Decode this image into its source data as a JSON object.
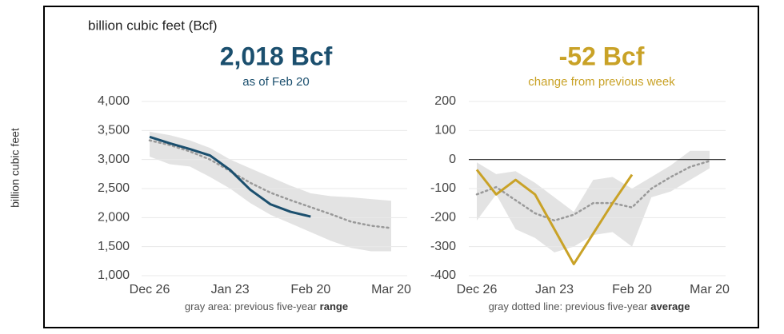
{
  "chart_data": [
    {
      "type": "line",
      "title": "2,018 Bcf",
      "subtitle": "as of Feb 20",
      "ylabel": "billion cubic feet",
      "unit_note": "billion cubic feet (Bcf)",
      "note": "gray area: previous five-year",
      "note_emphasis": "range",
      "categories": [
        "Dec 26",
        null,
        null,
        null,
        "Jan 23",
        null,
        null,
        null,
        "Feb 20",
        null,
        null,
        null,
        "Mar 20"
      ],
      "series": [
        {
          "color": "#1b4f6e",
          "values": [
            3390,
            3280,
            3180,
            3070,
            2820,
            2480,
            2230,
            2100,
            2018,
            null,
            null,
            null,
            null
          ]
        }
      ],
      "average": {
        "color": "#999999",
        "values": [
          3330,
          3250,
          3140,
          3000,
          2800,
          2600,
          2430,
          2300,
          2180,
          2060,
          1930,
          1860,
          1820
        ]
      },
      "band": {
        "color": "#e3e3e3",
        "high": [
          3480,
          3420,
          3330,
          3200,
          3000,
          2850,
          2700,
          2550,
          2420,
          2370,
          2350,
          2320,
          2290
        ],
        "low": [
          3050,
          2920,
          2880,
          2700,
          2500,
          2250,
          2050,
          1900,
          1750,
          1600,
          1480,
          1420,
          1420
        ]
      },
      "ylim": [
        1000,
        4000
      ],
      "yticks": [
        {
          "value": 1000,
          "label": "1,000"
        },
        {
          "value": 1500,
          "label": "1,500"
        },
        {
          "value": 2000,
          "label": "2,000"
        },
        {
          "value": 2500,
          "label": "2,500"
        },
        {
          "value": 3000,
          "label": "3,000"
        },
        {
          "value": 3500,
          "label": "3,500"
        },
        {
          "value": 4000,
          "label": "4,000"
        }
      ],
      "grid": true
    },
    {
      "type": "line",
      "title": "-52 Bcf",
      "subtitle": "change from previous week",
      "note": "gray dotted line: previous five-year",
      "note_emphasis": "average",
      "categories": [
        "Dec 26",
        null,
        null,
        null,
        "Jan 23",
        null,
        null,
        null,
        "Feb 20",
        null,
        null,
        null,
        "Mar 20"
      ],
      "series": [
        {
          "color": "#c9a227",
          "values": [
            -35,
            -120,
            -70,
            -120,
            -240,
            -360,
            -255,
            -150,
            -52,
            null,
            null,
            null,
            null
          ]
        }
      ],
      "average": {
        "color": "#999999",
        "values": [
          -120,
          -95,
          -140,
          -185,
          -210,
          -190,
          -150,
          -150,
          -165,
          -100,
          -60,
          -25,
          -5
        ]
      },
      "band": {
        "color": "#e3e3e3",
        "high": [
          -10,
          -50,
          -40,
          -80,
          -130,
          -180,
          -70,
          -60,
          -100,
          -60,
          -20,
          30,
          30
        ],
        "low": [
          -210,
          -120,
          -240,
          -270,
          -320,
          -300,
          -260,
          -250,
          -300,
          -130,
          -110,
          -70,
          -30
        ]
      },
      "ylim": [
        -400,
        200
      ],
      "yticks": [
        -400,
        -300,
        -200,
        -100,
        0,
        100,
        200
      ],
      "grid": true
    }
  ]
}
